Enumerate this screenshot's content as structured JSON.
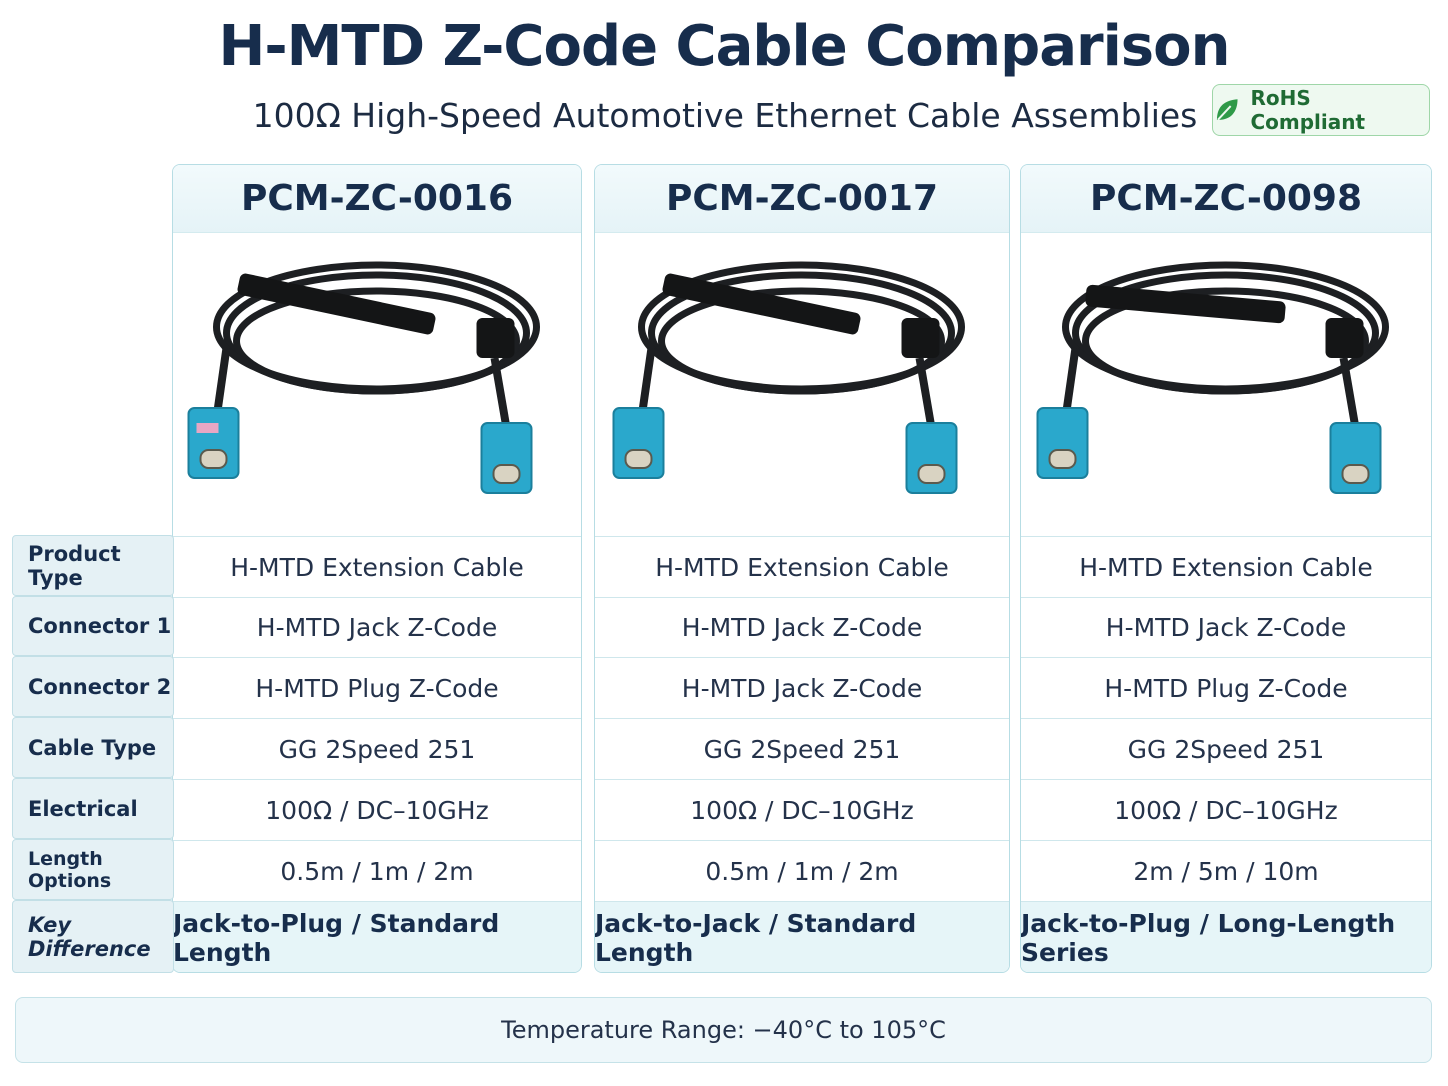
{
  "header": {
    "title": "H-MTD Z-Code Cable Comparison",
    "subtitle": "100Ω High-Speed Automotive Ethernet Cable Assemblies",
    "badge": "RoHS Compliant"
  },
  "table": {
    "products": [
      "PCM-ZC-0016",
      "PCM-ZC-0017",
      "PCM-ZC-0098"
    ],
    "rows": [
      {
        "label": "Product Type",
        "values": [
          "H-MTD Extension Cable",
          "H-MTD Extension Cable",
          "H-MTD Extension Cable"
        ]
      },
      {
        "label": "Connector 1",
        "values": [
          "H-MTD Jack Z-Code",
          "H-MTD Jack Z-Code",
          "H-MTD Jack Z-Code"
        ]
      },
      {
        "label": "Connector 2",
        "values": [
          "H-MTD Plug Z-Code",
          "H-MTD Jack Z-Code",
          "H-MTD Plug Z-Code"
        ]
      },
      {
        "label": "Cable Type",
        "values": [
          "GG 2Speed 251",
          "GG 2Speed 251",
          "GG 2Speed 251"
        ]
      },
      {
        "label": "Electrical",
        "values": [
          "100Ω / DC–10GHz",
          "100Ω / DC–10GHz",
          "100Ω / DC–10GHz"
        ]
      },
      {
        "label": "Length Options",
        "values": [
          "0.5m / 1m / 2m",
          "0.5m / 1m / 2m",
          "2m / 5m / 10m"
        ]
      },
      {
        "label": "Key Difference",
        "values": [
          "Jack-to-Plug / Standard Length",
          "Jack-to-Jack / Standard Length",
          "Jack-to-Plug / Long-Length Series"
        ]
      }
    ]
  },
  "footer": "Temperature Range:  −40°C to 105°C"
}
